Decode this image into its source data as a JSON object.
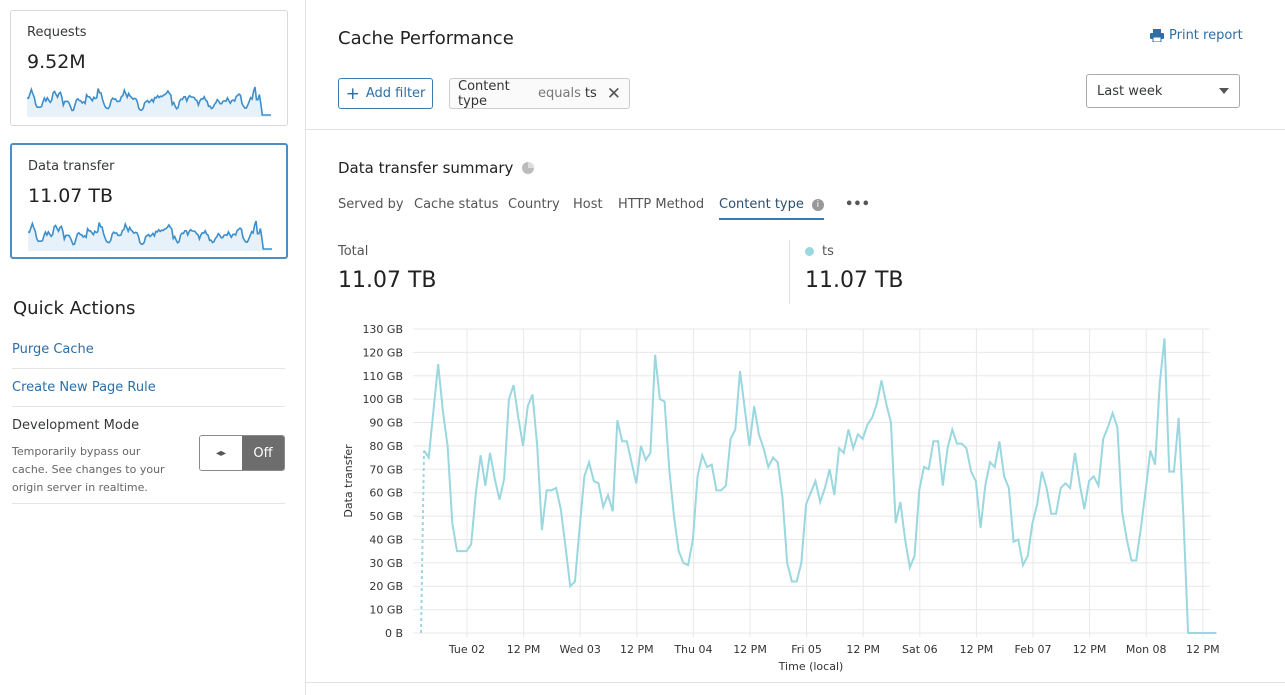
{
  "sidebar": {
    "cards": [
      {
        "label": "Requests",
        "value": "9.52M"
      },
      {
        "label": "Data transfer",
        "value": "11.07 TB"
      }
    ],
    "quick_actions": {
      "title": "Quick Actions",
      "purge_cache": "Purge Cache",
      "create_page_rule": "Create New Page Rule",
      "dev_mode": {
        "label": "Development Mode",
        "description": "Temporarily bypass our cache. See changes to your origin server in realtime.",
        "toggle_icon": "◂▸",
        "state": "Off"
      }
    }
  },
  "header": {
    "title": "Cache Performance",
    "print_label": "Print report",
    "add_filter": "Add filter",
    "filter_chip": {
      "field": "Content type",
      "operator": "equals",
      "value": "ts"
    },
    "range_select": "Last week"
  },
  "summary": {
    "title": "Data transfer summary",
    "tabs": [
      "Served by",
      "Cache status",
      "Country",
      "Host",
      "HTTP Method",
      "Content type"
    ],
    "active_tab": "Content type",
    "more": "•••",
    "total_label": "Total",
    "total_value": "11.07 TB",
    "series_label": "ts",
    "series_value": "11.07 TB"
  },
  "colors": {
    "accent": "#2c6ea5",
    "series": "#9ad7df",
    "sparkline": "#3d8fcb"
  },
  "chart_data": {
    "type": "line",
    "xlabel": "Time (local)",
    "ylabel": "Data transfer",
    "ylim": [
      0,
      130
    ],
    "y_ticks": [
      "0 B",
      "10 GB",
      "20 GB",
      "30 GB",
      "40 GB",
      "50 GB",
      "60 GB",
      "70 GB",
      "80 GB",
      "90 GB",
      "100 GB",
      "110 GB",
      "120 GB",
      "130 GB"
    ],
    "x_ticks": [
      "Tue 02",
      "12 PM",
      "Wed 03",
      "12 PM",
      "Thu 04",
      "12 PM",
      "Fri 05",
      "12 PM",
      "Sat 06",
      "12 PM",
      "Feb 07",
      "12 PM",
      "Mon 08",
      "12 PM"
    ],
    "grid": true,
    "series": [
      {
        "name": "ts",
        "unit": "GB",
        "values": [
          78,
          75,
          95,
          115,
          95,
          80,
          47,
          35,
          35,
          35,
          38,
          60,
          76,
          63,
          77,
          66,
          57,
          66,
          100,
          106,
          92,
          80,
          97,
          102,
          80,
          44,
          61,
          61,
          62,
          53,
          37,
          20,
          22,
          45,
          67,
          73,
          65,
          64,
          54,
          59,
          52,
          91,
          82,
          82,
          73,
          64,
          80,
          74,
          77,
          119,
          100,
          99,
          70,
          50,
          35,
          30,
          29,
          40,
          67,
          76,
          71,
          72,
          61,
          61,
          63,
          83,
          87,
          112,
          96,
          80,
          97,
          85,
          79,
          71,
          75,
          73,
          58,
          30,
          22,
          22,
          30,
          55,
          60,
          65,
          56,
          62,
          70,
          59,
          79,
          77,
          87,
          79,
          85,
          83,
          89,
          92,
          98,
          108,
          98,
          90,
          47,
          56,
          40,
          28,
          33,
          61,
          71,
          70,
          82,
          82,
          63,
          79,
          87,
          81,
          81,
          79,
          69,
          65,
          45,
          63,
          73,
          71,
          82,
          67,
          62,
          39,
          40,
          29,
          33,
          47,
          55,
          69,
          62,
          51,
          51,
          62,
          64,
          62,
          77,
          64,
          53,
          65,
          67,
          63,
          83,
          88,
          94,
          88,
          52,
          40,
          31,
          31,
          45,
          61,
          78,
          72,
          107,
          126,
          69,
          69,
          92,
          50,
          0,
          0,
          0,
          0,
          0,
          0,
          0
        ]
      }
    ]
  }
}
